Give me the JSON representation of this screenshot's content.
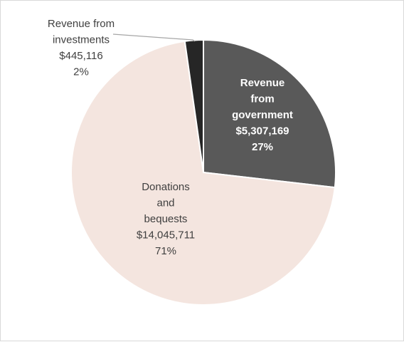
{
  "chart_data": {
    "type": "pie",
    "slices": [
      {
        "label_lines": [
          "Revenue",
          "from",
          "government"
        ],
        "value": "$5,307,169",
        "percent_label": "27%",
        "amount": 5307169,
        "color": "#595959",
        "text_color": "#ffffff"
      },
      {
        "label_lines": [
          "Donations",
          "and",
          "bequests"
        ],
        "value": "$14,045,711",
        "percent_label": "71%",
        "amount": 14045711,
        "color": "#f4e5df",
        "text_color": "#404040"
      },
      {
        "label_lines": [
          "Revenue from",
          "investments"
        ],
        "value": "$445,116",
        "percent_label": "2%",
        "amount": 445116,
        "color": "#262626",
        "text_color": "#404040"
      }
    ],
    "start_angle_deg": 0,
    "slice_border_color": "#ffffff",
    "leader_line_color": "#a6a6a6"
  }
}
